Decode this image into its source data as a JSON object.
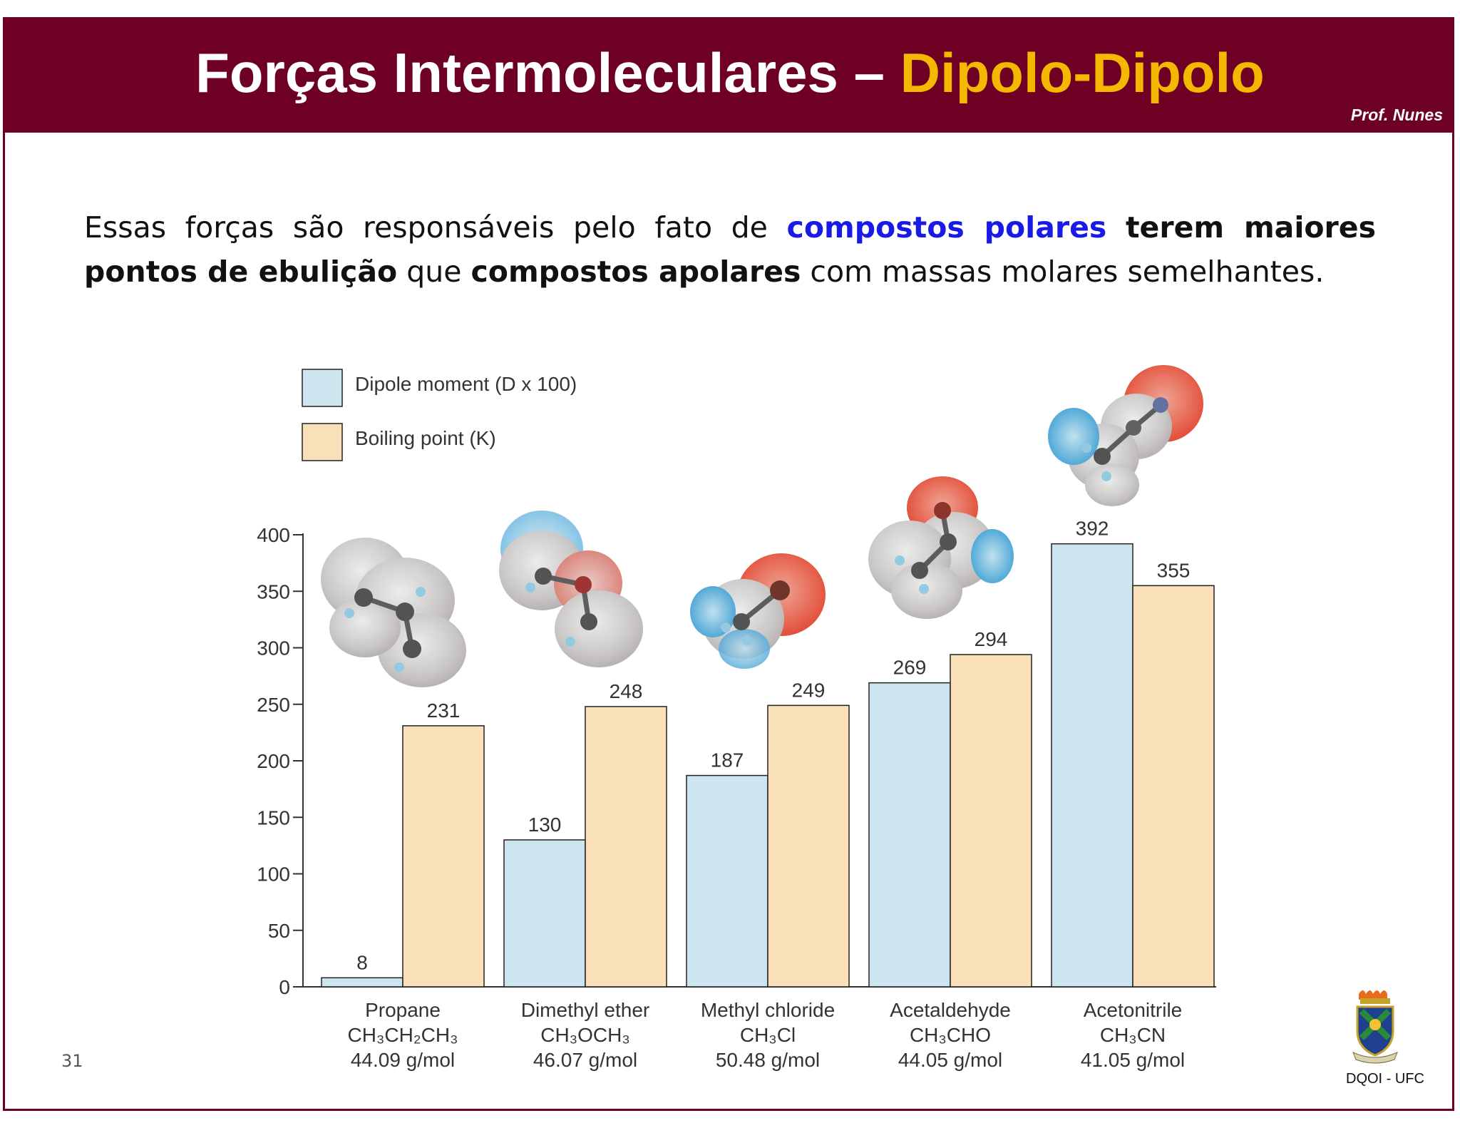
{
  "header": {
    "title_main": "Forças Intermoleculares – ",
    "title_accent": "Dipolo-Dipolo",
    "author": "Prof. Nunes"
  },
  "intro": {
    "part1": "Essas forças são responsáveis pelo fato de ",
    "part2": "compostos polares",
    "part3": " ",
    "part4": "terem maiores pontos de ebulição",
    "part5": " que ",
    "part6": "compostos apolares",
    "part7": " com massas molares semelhantes."
  },
  "footer": {
    "page_number": "31",
    "label": "DQOI - UFC"
  },
  "colors": {
    "header_bg": "#6e0024",
    "accent": "#f5b800",
    "dipole_bar": "#cde5ef",
    "boiling_bar": "#f9e0b8"
  },
  "chart_data": {
    "type": "bar",
    "title": "",
    "xlabel": "",
    "ylabel": "",
    "ylim": [
      0,
      400
    ],
    "yticks": [
      0,
      50,
      100,
      150,
      200,
      250,
      300,
      350,
      400
    ],
    "legend_position": "top-left",
    "grid": false,
    "categories": [
      {
        "name": "Propane",
        "formula": "CH₃CH₂CH₃",
        "mass": "44.09 g/mol",
        "molecule": "propane-model"
      },
      {
        "name": "Dimethyl ether",
        "formula": "CH₃OCH₃",
        "mass": "46.07 g/mol",
        "molecule": "dimethyl-ether-model"
      },
      {
        "name": "Methyl chloride",
        "formula": "CH₃Cl",
        "mass": "50.48 g/mol",
        "molecule": "methyl-chloride-model"
      },
      {
        "name": "Acetaldehyde",
        "formula": "CH₃CHO",
        "mass": "44.05 g/mol",
        "molecule": "acetaldehyde-model"
      },
      {
        "name": "Acetonitrile",
        "formula": "CH₃CN",
        "mass": "41.05 g/mol",
        "molecule": "acetonitrile-model"
      }
    ],
    "series": [
      {
        "name": "Dipole moment (D x 100)",
        "key": "dipole",
        "color": "#cde5ef",
        "values": [
          8,
          130,
          187,
          269,
          392
        ]
      },
      {
        "name": "Boiling point (K)",
        "key": "boiling",
        "color": "#f9e0b8",
        "values": [
          231,
          248,
          249,
          294,
          355
        ]
      }
    ]
  }
}
